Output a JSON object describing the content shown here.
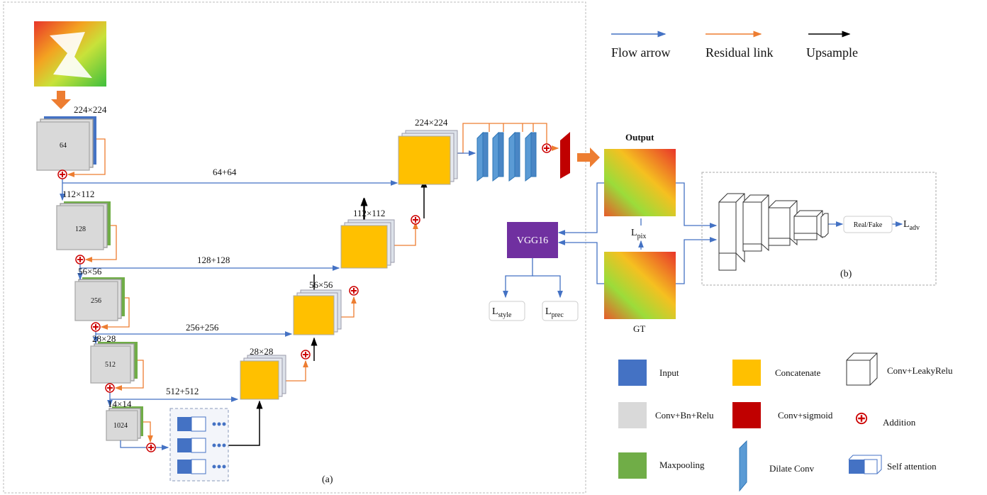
{
  "legend_top": {
    "flow": "Flow arrow",
    "residual": "Residual link",
    "upsample": "Upsample"
  },
  "encoder": [
    {
      "size": "224×224",
      "channels": "64"
    },
    {
      "size": "112×112",
      "channels": "128"
    },
    {
      "size": "56×56",
      "channels": "256"
    },
    {
      "size": "28×28",
      "channels": "512"
    },
    {
      "size": "14×14",
      "channels": "1024"
    }
  ],
  "skips": [
    "64+64",
    "128+128",
    "256+256",
    "512+512"
  ],
  "decoder": [
    "224×224",
    "112×112",
    "56×56",
    "28×28"
  ],
  "panel_a": "(a)",
  "panel_b": "(b)",
  "output": "Output",
  "gt": "GT",
  "vgg": "VGG16",
  "losses": {
    "pix": {
      "main": "L",
      "sub": "pix"
    },
    "style": {
      "main": "L",
      "sub": "style"
    },
    "prec": {
      "main": "L",
      "sub": "prec"
    },
    "adv": {
      "main": "L",
      "sub": "adv"
    }
  },
  "real_fake": "Real/Fake",
  "legend": {
    "input": "Input",
    "concatenate": "Concatenate",
    "conv_leaky": "Conv+LeakyRelu",
    "conv_bn": "Conv+Bn+Relu",
    "conv_sigmoid": "Conv+sigmoid",
    "addition": "Addition",
    "maxpooling": "Maxpooling",
    "dilate": "Dilate Conv",
    "self_attention": "Self attention"
  }
}
